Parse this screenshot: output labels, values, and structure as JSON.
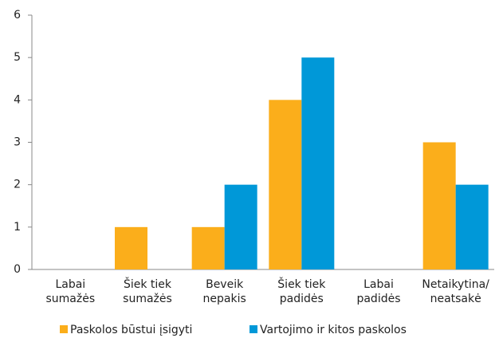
{
  "chart_data": {
    "type": "bar",
    "categories": [
      "Labai\nsumažės",
      "Šiek tiek\nsumažės",
      "Beveik\nnepakis",
      "Šiek tiek\npadidės",
      "Labai\npadidės",
      "Netaikytina/\nneatsakė"
    ],
    "series": [
      {
        "name": "Paskolos būstui įsigyti",
        "color": "#fbae1b",
        "values": [
          0,
          1,
          1,
          4,
          0,
          3
        ]
      },
      {
        "name": "Vartojimo ir kitos paskolos",
        "color": "#0098d8",
        "values": [
          0,
          0,
          2,
          5,
          0,
          2
        ]
      }
    ],
    "ylim": [
      0,
      6
    ],
    "yticks": [
      0,
      1,
      2,
      3,
      4,
      5,
      6
    ],
    "grid": false,
    "legend": "bottom"
  }
}
